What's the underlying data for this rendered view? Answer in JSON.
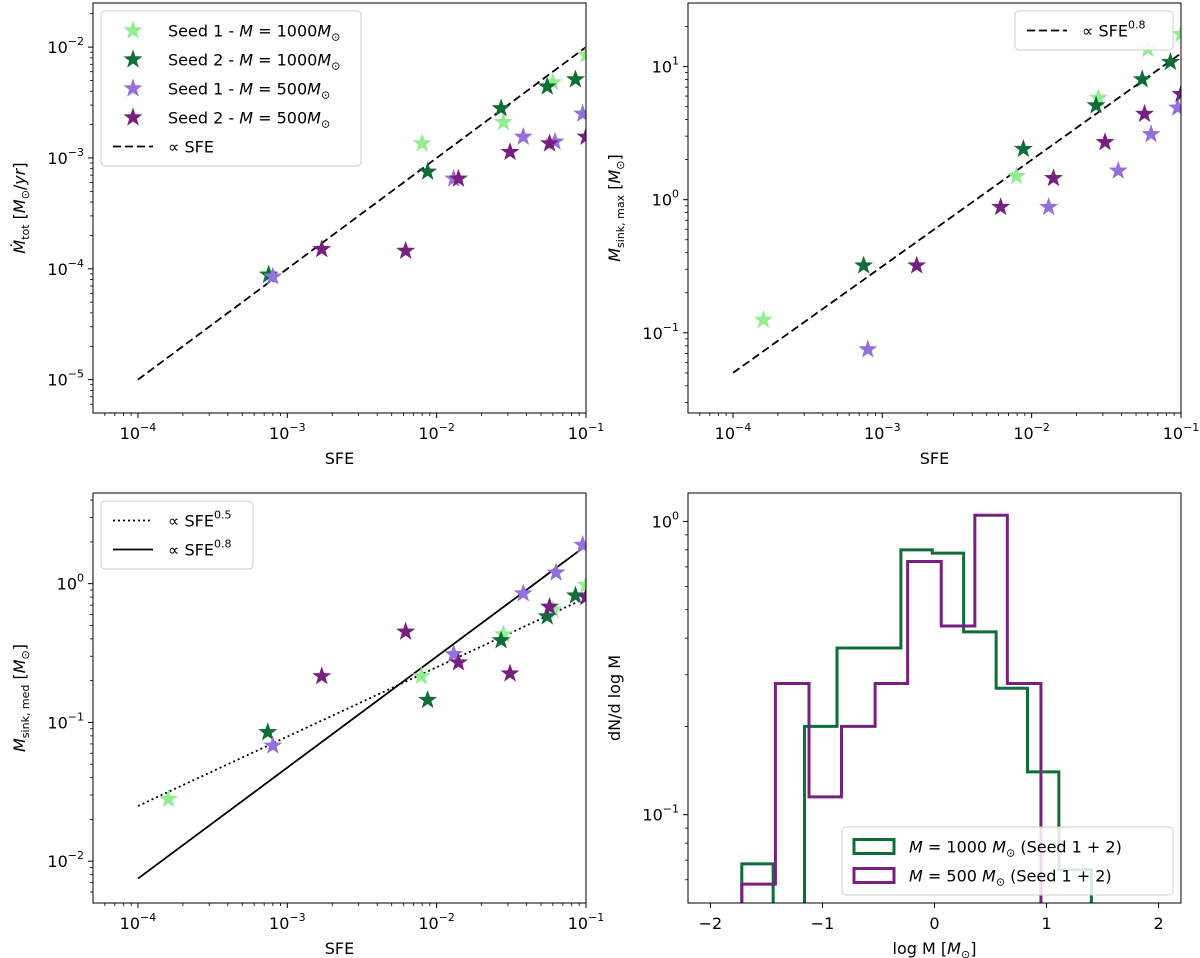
{
  "chart_data": [
    {
      "type": "scatter",
      "panel": "top-left",
      "xscale": "log",
      "yscale": "log",
      "xlim": [
        5e-05,
        0.1
      ],
      "ylim": [
        5e-06,
        0.025
      ],
      "xlabel": "SFE",
      "ylabel_main": "Ṁ",
      "ylabel_sub": "tot",
      "ylabel_unit": " [M⊙/yr]",
      "xticks": [
        {
          "v": 0.0001,
          "b": "10",
          "e": "−4"
        },
        {
          "v": 0.001,
          "b": "10",
          "e": "−3"
        },
        {
          "v": 0.01,
          "b": "10",
          "e": "−2"
        },
        {
          "v": 0.1,
          "b": "10",
          "e": "−1"
        }
      ],
      "yticks": [
        {
          "v": 1e-05,
          "b": "10",
          "e": "−5"
        },
        {
          "v": 0.0001,
          "b": "10",
          "e": "−4"
        },
        {
          "v": 0.001,
          "b": "10",
          "e": "−3"
        },
        {
          "v": 0.01,
          "b": "10",
          "e": "−2"
        }
      ],
      "legend_loc": "top-left",
      "series": [
        {
          "name": "Seed 1 - M = 1000M⊙",
          "color": "#90ee90",
          "x": [
            0.00075,
            0.008,
            0.028,
            0.06,
            0.1
          ],
          "y": [
            9e-05,
            0.00135,
            0.0021,
            0.0048,
            0.0085
          ]
        },
        {
          "name": "Seed 2 - M = 1000M⊙",
          "color": "#0f6e37",
          "x": [
            0.00075,
            0.0087,
            0.027,
            0.055,
            0.085
          ],
          "y": [
            8.8e-05,
            0.00075,
            0.0028,
            0.0044,
            0.0051
          ]
        },
        {
          "name": "Seed 1 - M = 500M⊙",
          "color": "#9370db",
          "x": [
            0.0008,
            0.013,
            0.038,
            0.062,
            0.095
          ],
          "y": [
            8.5e-05,
            0.00065,
            0.00155,
            0.0014,
            0.0025
          ]
        },
        {
          "name": "Seed 2 - M = 500M⊙",
          "color": "#77207f",
          "x": [
            0.0017,
            0.0062,
            0.014,
            0.031,
            0.057,
            0.1
          ],
          "y": [
            0.00015,
            0.000145,
            0.00065,
            0.00113,
            0.00135,
            0.00155
          ]
        }
      ],
      "lines": [
        {
          "name": "∝ SFE",
          "style": "dashed",
          "x": [
            0.0001,
            0.1
          ],
          "y": [
            1e-05,
            0.01
          ]
        }
      ]
    },
    {
      "type": "scatter",
      "panel": "top-right",
      "xscale": "log",
      "yscale": "log",
      "xlim": [
        5e-05,
        0.1
      ],
      "ylim": [
        0.025,
        30
      ],
      "xlabel": "SFE",
      "ylabel_main": "M",
      "ylabel_sub": "sink, max",
      "ylabel_unit": " [M⊙]",
      "xticks": [
        {
          "v": 0.0001,
          "b": "10",
          "e": "−4"
        },
        {
          "v": 0.001,
          "b": "10",
          "e": "−3"
        },
        {
          "v": 0.01,
          "b": "10",
          "e": "−2"
        },
        {
          "v": 0.1,
          "b": "10",
          "e": "−1"
        }
      ],
      "yticks": [
        {
          "v": 0.1,
          "b": "10",
          "e": "−1"
        },
        {
          "v": 1,
          "b": "10",
          "e": "0"
        },
        {
          "v": 10,
          "b": "10",
          "e": "1"
        }
      ],
      "legend_loc": "top-right",
      "series": [
        {
          "color": "#90ee90",
          "x": [
            0.00016,
            0.0079,
            0.028,
            0.06,
            0.1
          ],
          "y": [
            0.125,
            1.5,
            5.8,
            13.5,
            17.5
          ]
        },
        {
          "color": "#0f6e37",
          "x": [
            0.00075,
            0.0088,
            0.027,
            0.055,
            0.085
          ],
          "y": [
            0.32,
            2.4,
            5.1,
            8.0,
            10.8
          ]
        },
        {
          "color": "#9370db",
          "x": [
            0.0008,
            0.013,
            0.038,
            0.063,
            0.095
          ],
          "y": [
            0.075,
            0.88,
            1.65,
            3.1,
            4.9
          ]
        },
        {
          "color": "#77207f",
          "x": [
            0.0017,
            0.0062,
            0.014,
            0.031,
            0.057,
            0.1
          ],
          "y": [
            0.32,
            0.88,
            1.45,
            2.7,
            4.4,
            6.2
          ]
        }
      ],
      "lines": [
        {
          "name": "∝ SFE^0.8",
          "label_base": "∝ SFE",
          "label_exp": "0.8",
          "style": "dashed",
          "x": [
            0.0001,
            0.1
          ],
          "y": [
            0.05,
            12.56
          ]
        }
      ]
    },
    {
      "type": "scatter",
      "panel": "bottom-left",
      "xscale": "log",
      "yscale": "log",
      "xlim": [
        5e-05,
        0.1
      ],
      "ylim": [
        0.005,
        4.5
      ],
      "xlabel": "SFE",
      "ylabel_main": "M",
      "ylabel_sub": "sink, med",
      "ylabel_unit": " [M⊙]",
      "xticks": [
        {
          "v": 0.0001,
          "b": "10",
          "e": "−4"
        },
        {
          "v": 0.001,
          "b": "10",
          "e": "−3"
        },
        {
          "v": 0.01,
          "b": "10",
          "e": "−2"
        },
        {
          "v": 0.1,
          "b": "10",
          "e": "−1"
        }
      ],
      "yticks": [
        {
          "v": 0.01,
          "b": "10",
          "e": "−2"
        },
        {
          "v": 0.1,
          "b": "10",
          "e": "−1"
        },
        {
          "v": 1,
          "b": "10",
          "e": "0"
        }
      ],
      "legend_loc": "top-left",
      "series": [
        {
          "color": "#90ee90",
          "x": [
            0.00016,
            0.0079,
            0.028,
            0.06,
            0.1
          ],
          "y": [
            0.028,
            0.215,
            0.43,
            0.65,
            0.98
          ]
        },
        {
          "color": "#0f6e37",
          "x": [
            0.00074,
            0.0087,
            0.027,
            0.055,
            0.085
          ],
          "y": [
            0.085,
            0.145,
            0.39,
            0.58,
            0.82
          ]
        },
        {
          "color": "#9370db",
          "x": [
            0.0008,
            0.013,
            0.038,
            0.063,
            0.095
          ],
          "y": [
            0.068,
            0.31,
            0.85,
            1.2,
            1.9
          ]
        },
        {
          "color": "#77207f",
          "x": [
            0.0017,
            0.0062,
            0.014,
            0.031,
            0.057,
            0.1
          ],
          "y": [
            0.215,
            0.45,
            0.27,
            0.225,
            0.68,
            0.8
          ]
        }
      ],
      "lines": [
        {
          "name": "∝ SFE^0.5",
          "label_base": "∝ SFE",
          "label_exp": "0.5",
          "style": "dotted",
          "x": [
            0.0001,
            0.1
          ],
          "y": [
            0.025,
            0.79
          ]
        },
        {
          "name": "∝ SFE^0.8",
          "label_base": "∝ SFE",
          "label_exp": "0.8",
          "style": "solid",
          "x": [
            0.0001,
            0.1
          ],
          "y": [
            0.0075,
            1.88
          ]
        }
      ]
    },
    {
      "type": "histogram",
      "panel": "bottom-right",
      "xscale": "linear",
      "yscale": "log",
      "xlim": [
        -2.2,
        2.2
      ],
      "ylim": [
        0.05,
        1.25
      ],
      "xlabel": "log M [M⊙]",
      "ylabel": "dN/d log M",
      "xticks": [
        {
          "v": -2,
          "t": "−2"
        },
        {
          "v": -1,
          "t": "−1"
        },
        {
          "v": 0,
          "t": "0"
        },
        {
          "v": 1,
          "t": "1"
        },
        {
          "v": 2,
          "t": "2"
        }
      ],
      "yticks": [
        {
          "v": 0.1,
          "b": "10",
          "e": "−1"
        },
        {
          "v": 1,
          "b": "10",
          "e": "0"
        }
      ],
      "legend_loc": "bottom-right",
      "series": [
        {
          "name": "M = 1000 M⊙ (Seed 1 + 2)",
          "label_lhs": "M",
          "label_rhs": " = 1000 M⊙ (Seed 1 + 2)",
          "color": "#0f6e37",
          "edges": [
            -1.72,
            -1.44,
            -1.16,
            -0.87,
            -0.59,
            -0.3,
            -0.02,
            0.26,
            0.55,
            0.83,
            1.11,
            1.4,
            1.68
          ],
          "values": [
            0.068,
            0.0,
            0.2,
            0.37,
            0.37,
            0.8,
            0.78,
            0.42,
            0.27,
            0.14,
            0.065,
            0.0
          ]
        },
        {
          "name": "M = 500 M⊙ (Seed 1 + 2)",
          "label_lhs": "M",
          "label_rhs": " = 500 M⊙ (Seed 1 + 2)",
          "color": "#77207f",
          "edges": [
            -1.72,
            -1.42,
            -1.12,
            -0.83,
            -0.53,
            -0.24,
            0.06,
            0.36,
            0.65,
            0.95
          ],
          "values": [
            0.058,
            0.28,
            0.115,
            0.2,
            0.28,
            0.73,
            0.44,
            1.05,
            0.28
          ]
        }
      ]
    }
  ]
}
